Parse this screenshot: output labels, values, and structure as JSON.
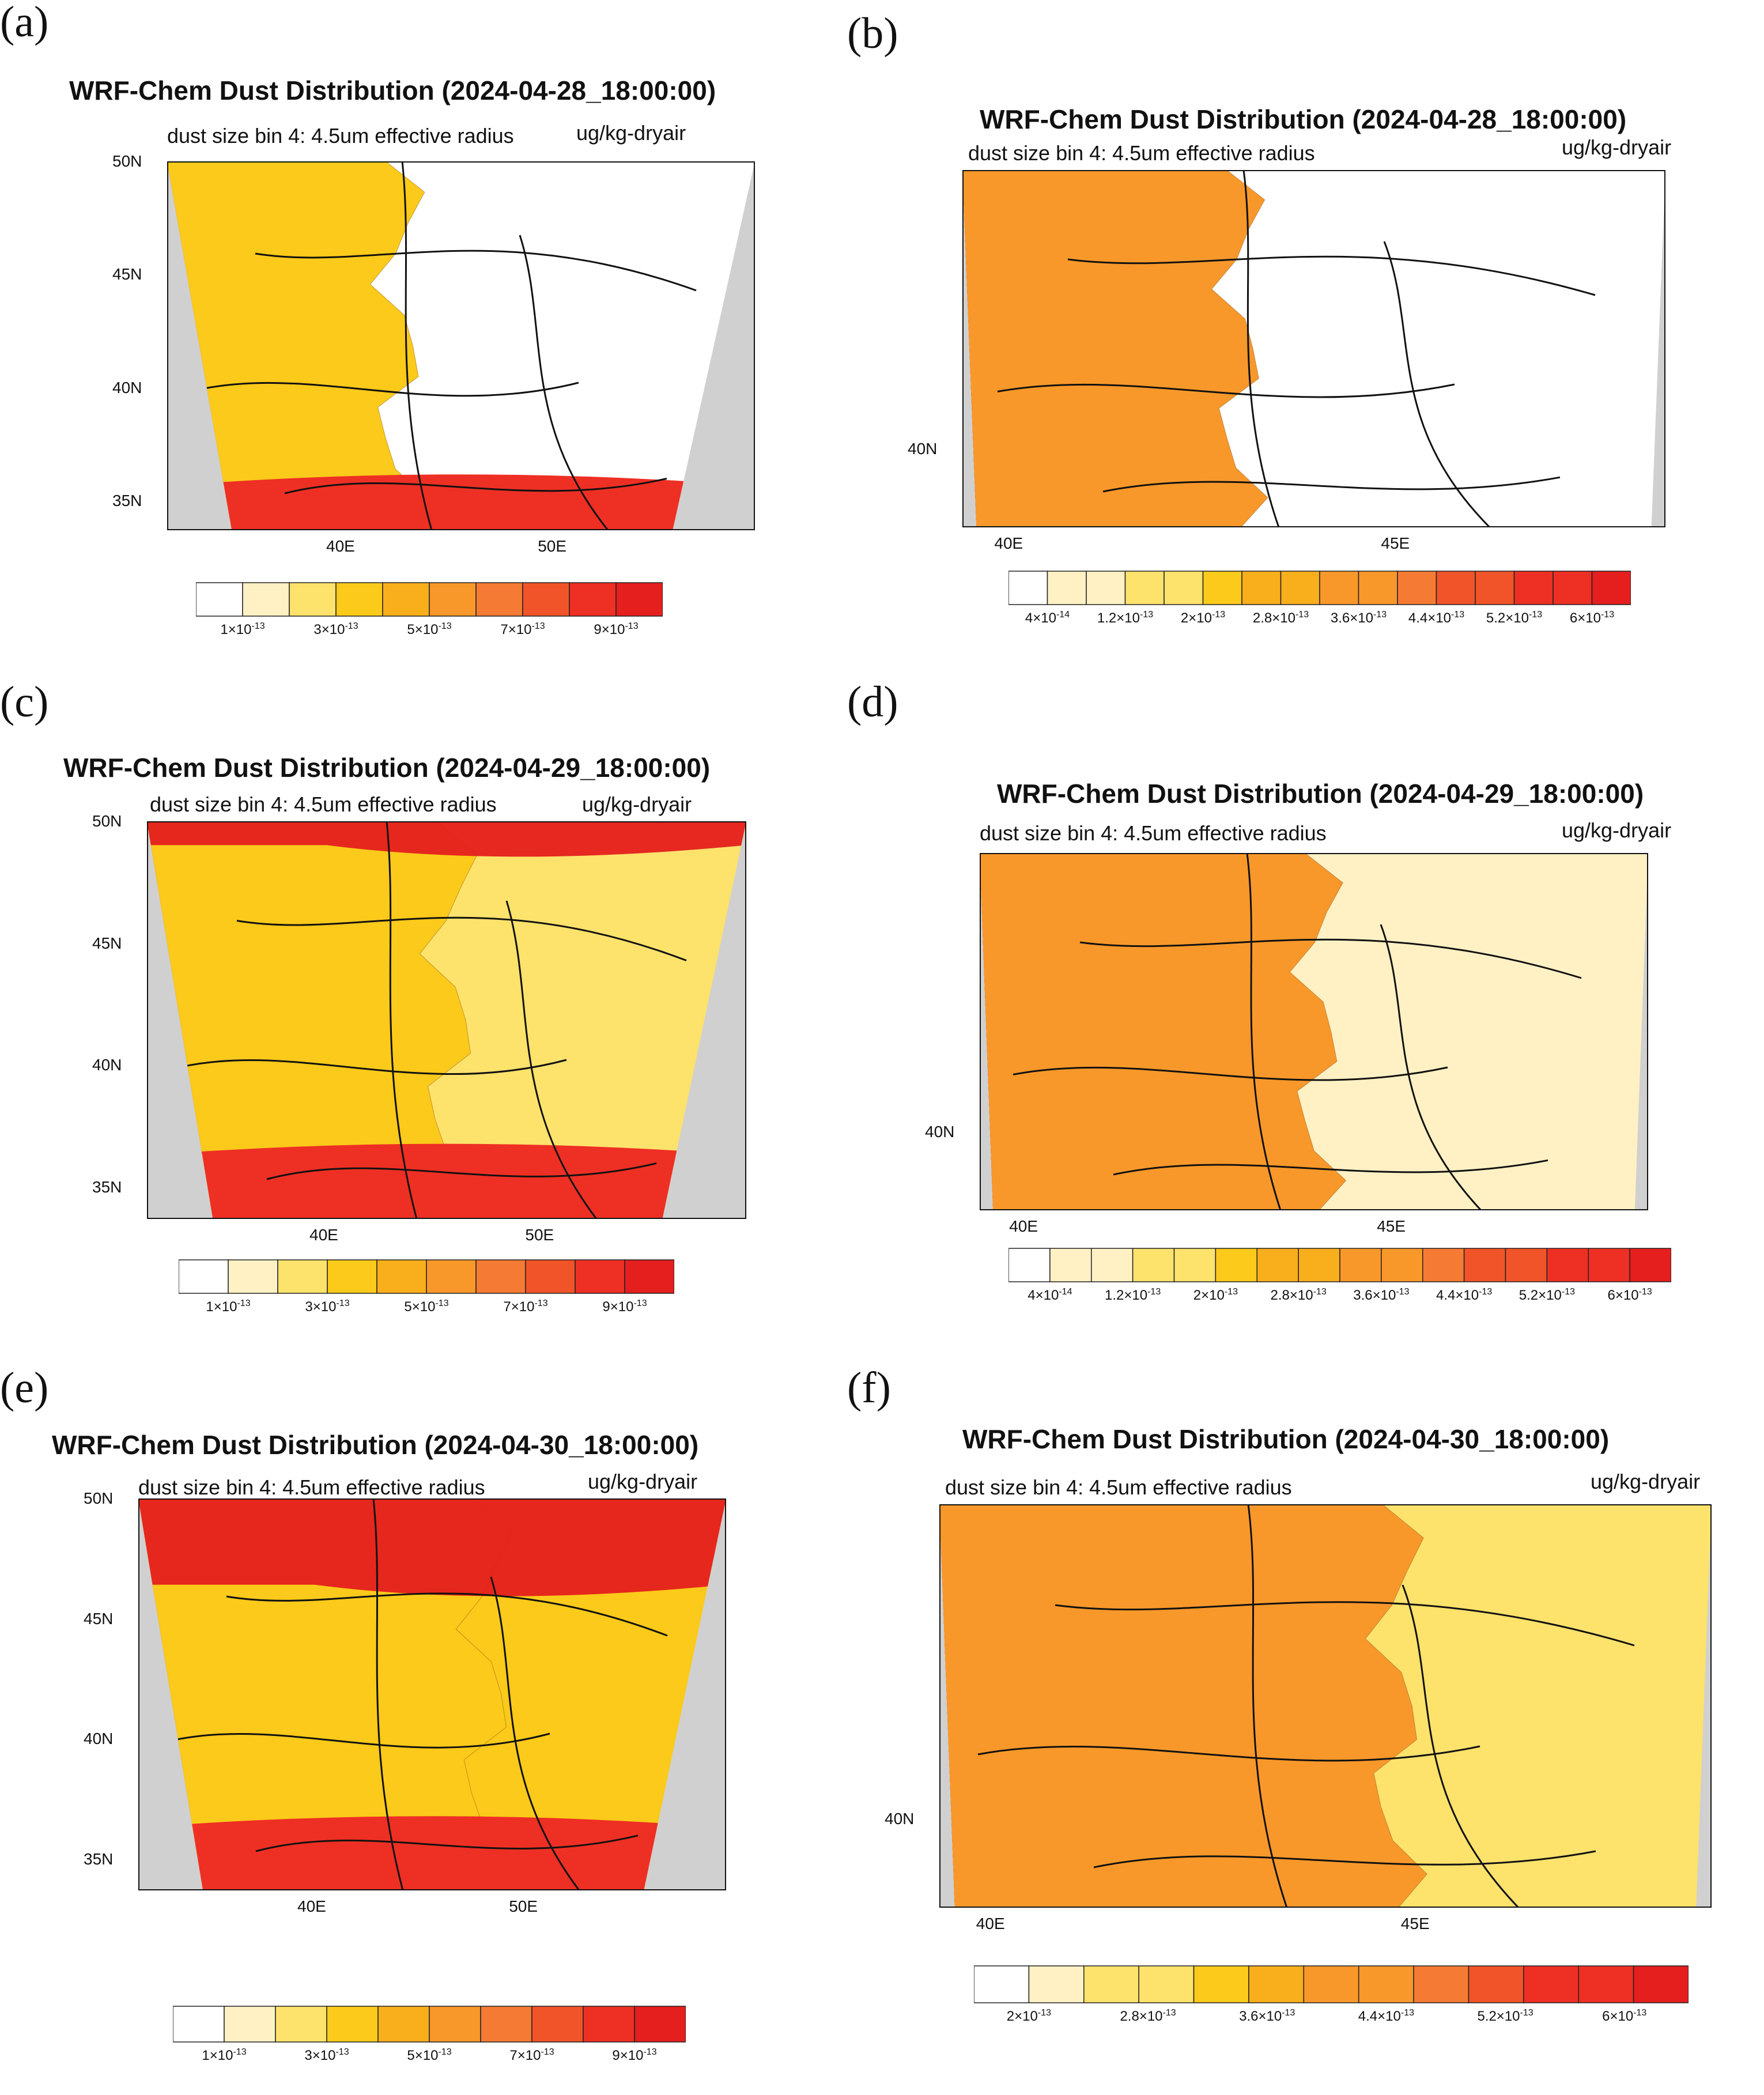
{
  "figure": {
    "colors": {
      "border": "#111111",
      "background_land": "#d0d0d0",
      "levels_10": [
        "#ffffff",
        "#fff1c4",
        "#fde26c",
        "#fbca1a",
        "#f9ae1c",
        "#f8982a",
        "#f57a33",
        "#f15428",
        "#ee2f24",
        "#e51e1e"
      ],
      "levels_16": [
        "#ffffff",
        "#fff1c4",
        "#fff1c4",
        "#fde26c",
        "#fde26c",
        "#fbca1a",
        "#f9ae1c",
        "#f9ae1c",
        "#f8982a",
        "#f8982a",
        "#f57a33",
        "#f15428",
        "#f15428",
        "#ee2f24",
        "#ee2f24",
        "#e51e1e"
      ],
      "levels_13": [
        "#ffffff",
        "#fff1c4",
        "#fde26c",
        "#fde26c",
        "#fbca1a",
        "#f9ae1c",
        "#f8982a",
        "#f8982a",
        "#f57a33",
        "#f15428",
        "#ee2f24",
        "#ee2f24",
        "#e51e1e"
      ]
    },
    "panels": [
      {
        "letter": "(a)",
        "title": "WRF-Chem Dust Distribution (2024-04-28_18:00:00)",
        "subtitle": "dust size bin 4: 4.5um effective radius",
        "units": "ug/kg-dryair",
        "y_ticks": [
          "50N",
          "45N",
          "40N",
          "35N"
        ],
        "x_ticks": [
          "40E",
          "50E"
        ],
        "cbar_labels": [
          "1×10",
          "3×10",
          "5×10",
          "7×10",
          "9×10"
        ],
        "cbar_exp": "-13",
        "palette": "levels_10",
        "fill": "low"
      },
      {
        "letter": "(b)",
        "title": "WRF-Chem Dust Distribution (2024-04-28_18:00:00)",
        "subtitle": "dust size bin 4: 4.5um effective radius",
        "units": "ug/kg-dryair",
        "y_ticks": [
          "40N"
        ],
        "x_ticks": [
          "40E",
          "45E"
        ],
        "cbar_labels": [
          "4×10",
          "1.2×10",
          "2×10",
          "2.8×10",
          "3.6×10",
          "4.4×10",
          "5.2×10",
          "6×10"
        ],
        "cbar_exps": [
          "-14",
          "-13",
          "-13",
          "-13",
          "-13",
          "-13",
          "-13",
          "-13"
        ],
        "palette": "levels_16",
        "fill": "low"
      },
      {
        "letter": "(c)",
        "title": "WRF-Chem Dust Distribution (2024-04-29_18:00:00)",
        "subtitle": "dust size bin 4: 4.5um effective radius",
        "units": "ug/kg-dryair",
        "y_ticks": [
          "50N",
          "45N",
          "40N",
          "35N"
        ],
        "x_ticks": [
          "40E",
          "50E"
        ],
        "cbar_labels": [
          "1×10",
          "3×10",
          "5×10",
          "7×10",
          "9×10"
        ],
        "cbar_exp": "-13",
        "palette": "levels_10",
        "fill": "mid"
      },
      {
        "letter": "(d)",
        "title": "WRF-Chem Dust Distribution (2024-04-29_18:00:00)",
        "subtitle": "dust size bin 4: 4.5um effective radius",
        "units": "ug/kg-dryair",
        "y_ticks": [
          "40N"
        ],
        "x_ticks": [
          "40E",
          "45E"
        ],
        "cbar_labels": [
          "4×10",
          "1.2×10",
          "2×10",
          "2.8×10",
          "3.6×10",
          "4.4×10",
          "5.2×10",
          "6×10"
        ],
        "cbar_exps": [
          "-14",
          "-13",
          "-13",
          "-13",
          "-13",
          "-13",
          "-13",
          "-13"
        ],
        "palette": "levels_16",
        "fill": "mid"
      },
      {
        "letter": "(e)",
        "title": "WRF-Chem Dust Distribution (2024-04-30_18:00:00)",
        "subtitle": "dust size bin 4: 4.5um effective radius",
        "units": "ug/kg-dryair",
        "y_ticks": [
          "50N",
          "45N",
          "40N",
          "35N"
        ],
        "x_ticks": [
          "40E",
          "50E"
        ],
        "cbar_labels": [
          "1×10",
          "3×10",
          "5×10",
          "7×10",
          "9×10"
        ],
        "cbar_exp": "-13",
        "palette": "levels_10",
        "fill": "high"
      },
      {
        "letter": "(f)",
        "title": "WRF-Chem Dust Distribution (2024-04-30_18:00:00)",
        "subtitle": "dust size bin 4: 4.5um effective radius",
        "units": "ug/kg-dryair",
        "y_ticks": [
          "40N"
        ],
        "x_ticks": [
          "40E",
          "45E"
        ],
        "cbar_labels": [
          "2×10",
          "2.8×10",
          "3.6×10",
          "4.4×10",
          "5.2×10",
          "6×10"
        ],
        "cbar_exp": "-13",
        "palette": "levels_13",
        "fill": "high"
      }
    ]
  }
}
